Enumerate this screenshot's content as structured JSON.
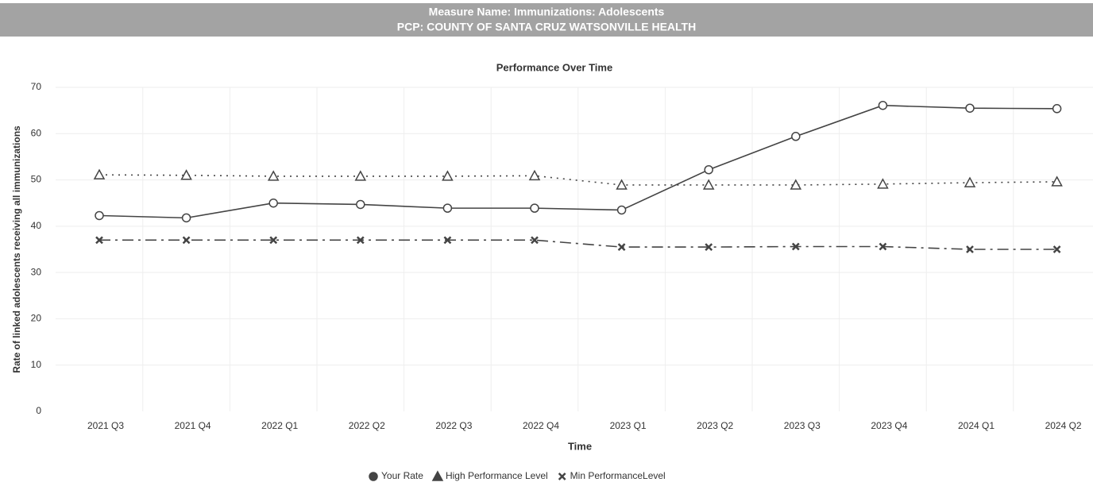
{
  "header": {
    "measure": "Measure Name: Immunizations: Adolescents",
    "pcp": "PCP: COUNTY OF SANTA CRUZ WATSONVILLE HEALTH"
  },
  "chart_data": {
    "type": "line",
    "title": "Performance Over Time",
    "x_label": "Time",
    "y_label": "Rate of linked adolescents receiving all immunizations",
    "categories": [
      "2021 Q3",
      "2021 Q4",
      "2022 Q1",
      "2022 Q2",
      "2022 Q3",
      "2022 Q4",
      "2023 Q1",
      "2023 Q2",
      "2023 Q3",
      "2023 Q4",
      "2024 Q1",
      "2024 Q2"
    ],
    "series": [
      {
        "name": "Your Rate",
        "color": "#444444",
        "marker": "circle",
        "dash": "solid",
        "values": [
          42.3,
          41.8,
          45,
          44.7,
          43.9,
          43.9,
          43.5,
          52.2,
          59.4,
          66.1,
          65.5,
          65.4
        ]
      },
      {
        "name": "High Performance Level",
        "color": "#444444",
        "marker": "triangle",
        "dash": "dotted",
        "values": [
          51.1,
          51,
          50.8,
          50.8,
          50.8,
          50.9,
          48.9,
          48.9,
          48.9,
          49.1,
          49.4,
          49.6
        ]
      },
      {
        "name": "Min PerformanceLevel",
        "color": "#444444",
        "marker": "cross",
        "dash": "dashdot",
        "values": [
          37,
          37,
          37,
          37,
          37,
          37,
          35.5,
          35.5,
          35.6,
          35.6,
          35,
          35
        ]
      }
    ],
    "ylim": [
      0,
      70
    ],
    "yticks": [
      0,
      10,
      20,
      30,
      40,
      50,
      60,
      70
    ],
    "grid": true,
    "legend": "bottom"
  }
}
